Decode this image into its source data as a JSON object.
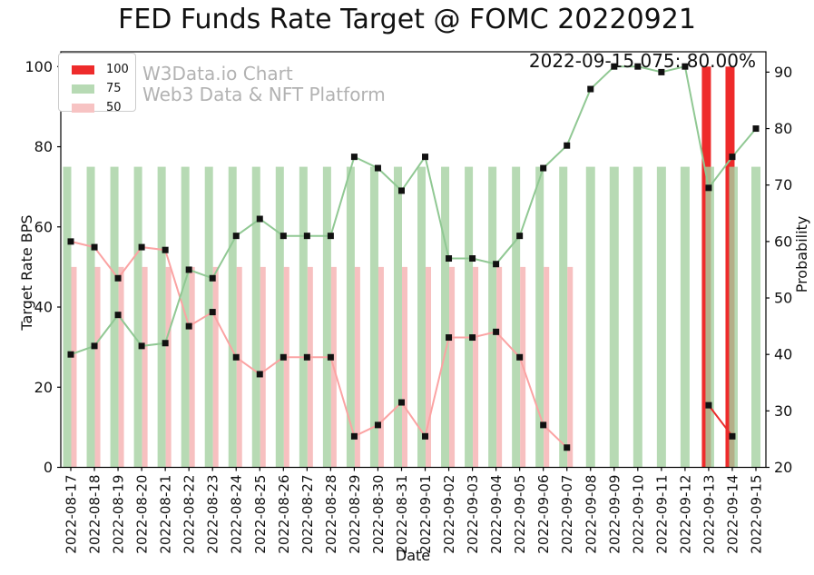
{
  "title": "FED Funds Rate Target @ FOMC 20220921",
  "annotation": "2022-09-15 075: 80.00%",
  "watermark": {
    "line1": "W3Data.io Chart",
    "line2": "Web3 Data & NFT Platform"
  },
  "legend": {
    "items": [
      {
        "label": "100",
        "color": "#ee2b2b"
      },
      {
        "label": "75",
        "color": "#b7dab4"
      },
      {
        "label": "50",
        "color": "#f7c3c3"
      }
    ]
  },
  "chart_data": {
    "type": "bar+line",
    "title": "FED Funds Rate Target @ FOMC 20220921",
    "xlabel": "Date",
    "ylabel_left": "Target Rate BPS",
    "ylabel_right": "Probability",
    "left_axis": {
      "label": "Target Rate BPS",
      "ticks": [
        0,
        20,
        40,
        60,
        80,
        100
      ],
      "range": [
        0,
        103.7
      ]
    },
    "right_axis": {
      "label": "Probability",
      "ticks": [
        20,
        30,
        40,
        50,
        60,
        70,
        80,
        90
      ],
      "range": [
        20,
        93.6
      ]
    },
    "grid": false,
    "legend_position": "upper-left",
    "categories": [
      "2022-08-17",
      "2022-08-18",
      "2022-08-19",
      "2022-08-20",
      "2022-08-21",
      "2022-08-22",
      "2022-08-23",
      "2022-08-24",
      "2022-08-25",
      "2022-08-26",
      "2022-08-27",
      "2022-08-28",
      "2022-08-29",
      "2022-08-30",
      "2022-08-31",
      "2022-09-01",
      "2022-09-02",
      "2022-09-03",
      "2022-09-04",
      "2022-09-05",
      "2022-09-06",
      "2022-09-07",
      "2022-09-08",
      "2022-09-09",
      "2022-09-10",
      "2022-09-11",
      "2022-09-12",
      "2022-09-13",
      "2022-09-14",
      "2022-09-15"
    ],
    "bars": [
      {
        "name": "target-100bps",
        "label": "100",
        "axis": "left",
        "color": "#ee2b2b",
        "opacity": 1,
        "values": [
          null,
          null,
          null,
          null,
          null,
          null,
          null,
          null,
          null,
          null,
          null,
          null,
          null,
          null,
          null,
          null,
          null,
          null,
          null,
          null,
          null,
          null,
          null,
          null,
          null,
          null,
          null,
          100,
          100,
          null
        ]
      },
      {
        "name": "target-75bps",
        "label": "75",
        "axis": "left",
        "color": "#a5d1a1",
        "opacity": 0.8,
        "values": [
          75,
          75,
          75,
          75,
          75,
          75,
          75,
          75,
          75,
          75,
          75,
          75,
          75,
          75,
          75,
          75,
          75,
          75,
          75,
          75,
          75,
          75,
          75,
          75,
          75,
          75,
          75,
          75,
          75,
          75
        ]
      },
      {
        "name": "target-50bps",
        "label": "50",
        "axis": "left",
        "color": "#f5b0b0",
        "opacity": 0.8,
        "values": [
          50,
          50,
          50,
          50,
          50,
          50,
          50,
          50,
          50,
          50,
          50,
          50,
          50,
          50,
          50,
          50,
          50,
          50,
          50,
          50,
          50,
          50,
          null,
          null,
          null,
          null,
          null,
          null,
          null,
          null
        ]
      }
    ],
    "series": [
      {
        "name": "probability-50bps",
        "axis": "right",
        "color": "#fba3a3",
        "marker": "black-square",
        "values": [
          60,
          59,
          53.5,
          59,
          58.5,
          45,
          47.5,
          39.5,
          36.5,
          39.5,
          39.5,
          39.5,
          25.5,
          27.5,
          31.5,
          25.5,
          43,
          43,
          44,
          39.5,
          27.5,
          23.5,
          null,
          null,
          null,
          null,
          null,
          null,
          null,
          null
        ]
      },
      {
        "name": "probability-75bps",
        "axis": "right",
        "color": "#90c893",
        "marker": "black-square",
        "values": [
          40,
          41.5,
          47,
          41.5,
          42,
          55,
          53.5,
          61,
          64,
          61,
          61,
          61,
          75,
          73,
          69,
          75,
          57,
          57,
          56,
          61,
          73,
          77,
          87,
          91,
          91,
          90,
          91,
          69.5,
          75,
          80
        ]
      },
      {
        "name": "probability-100bps",
        "axis": "right",
        "color": "#ea2c2c",
        "marker": "black-square",
        "values": [
          null,
          null,
          null,
          null,
          null,
          null,
          null,
          null,
          null,
          null,
          null,
          null,
          null,
          null,
          null,
          null,
          null,
          null,
          null,
          null,
          null,
          null,
          null,
          null,
          null,
          null,
          null,
          31,
          25.5,
          null
        ]
      }
    ]
  }
}
